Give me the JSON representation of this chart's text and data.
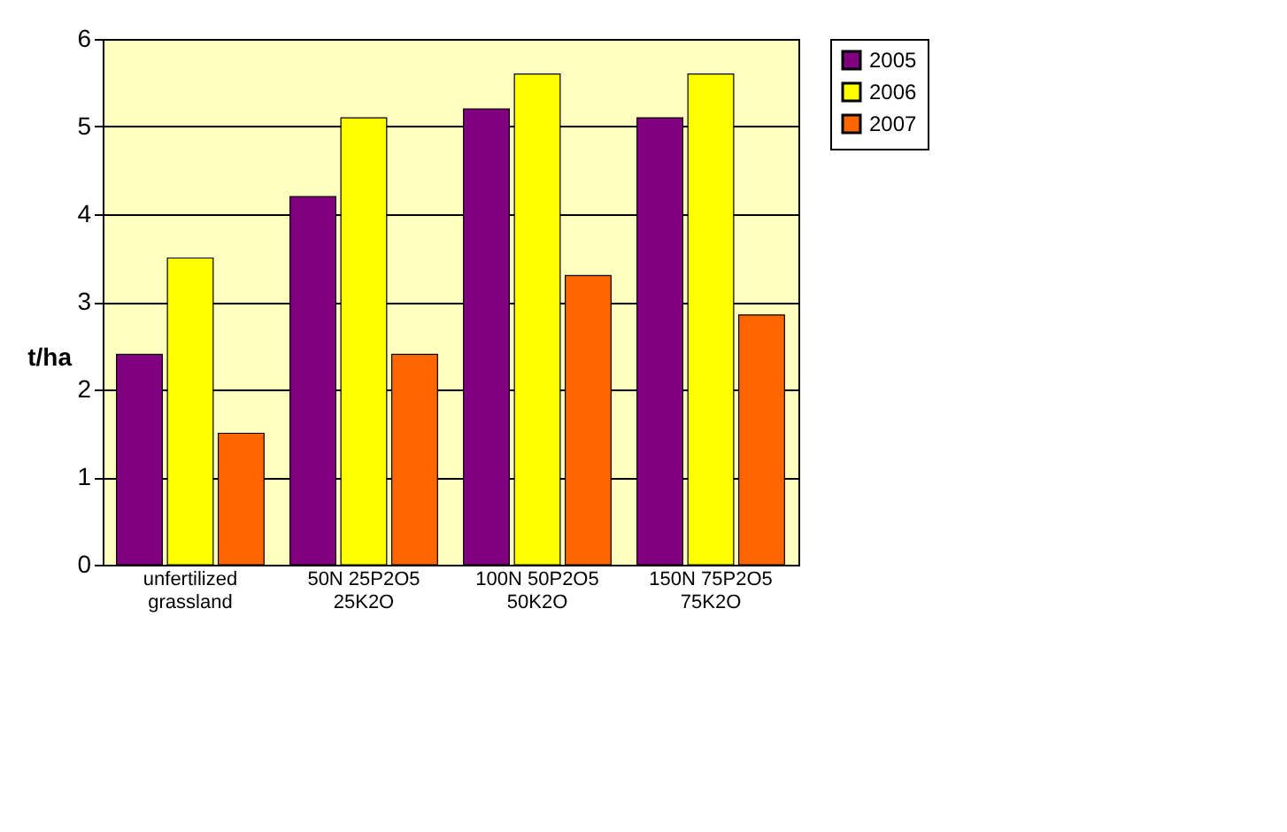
{
  "chart_data": {
    "type": "bar",
    "ylabel": "t/ha",
    "categories": [
      "unfertilized\ngrassland",
      "50N 25P2O5\n25K2O",
      "100N 50P2O5\n50K2O",
      "150N 75P2O5\n75K2O"
    ],
    "series": [
      {
        "name": "2005",
        "color": "#800080",
        "values": [
          2.4,
          4.2,
          5.2,
          5.1
        ]
      },
      {
        "name": "2006",
        "color": "#ffff00",
        "values": [
          3.5,
          5.1,
          5.6,
          5.6
        ]
      },
      {
        "name": "2007",
        "color": "#ff6600",
        "values": [
          1.5,
          2.4,
          3.3,
          2.85
        ]
      }
    ],
    "ylim": [
      0,
      6
    ],
    "yticks": [
      0,
      1,
      2,
      3,
      4,
      5,
      6
    ],
    "grid": "y",
    "legend": "right"
  }
}
